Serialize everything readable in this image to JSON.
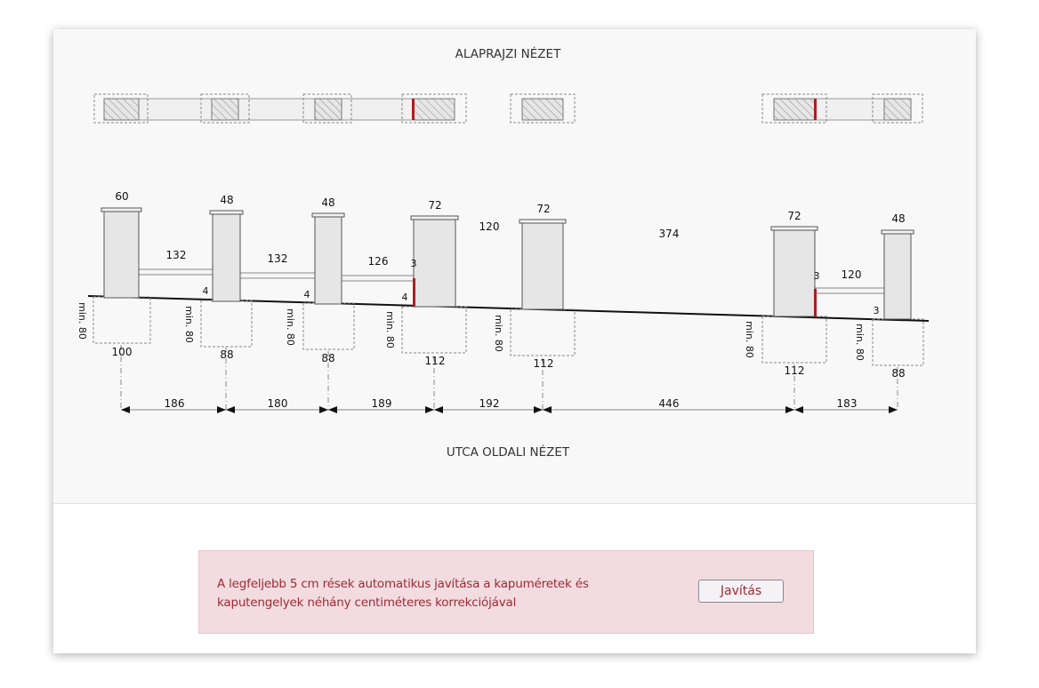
{
  "titles": {
    "top": "ALAPRAJZI NÉZET",
    "bottom": "UTCA OLDALI NÉZET"
  },
  "drawing": {
    "pillar_widths": [
      "60",
      "48",
      "48",
      "72",
      "72",
      "72",
      "48"
    ],
    "panel_lengths": [
      "132",
      "132",
      "126",
      "120",
      "374",
      "120"
    ],
    "gap_small": [
      "4",
      "4",
      "4",
      "3",
      "3",
      "3"
    ],
    "footing_depth": "min. 80",
    "footing_widths": [
      "100",
      "88",
      "88",
      "112",
      "112",
      "112",
      "88"
    ],
    "axis_spacing": [
      "186",
      "180",
      "189",
      "192",
      "446",
      "183"
    ]
  },
  "notice": {
    "text": "A legfeljebb 5 cm rések automatikus javítása a kapuméretek és kaputengelyek néhány centiméteres korrekciójával",
    "button_label": "Javítás"
  },
  "colors": {
    "accent_red": "#b41a1f",
    "notice_bg": "#f2dcdf",
    "notice_text": "#9d2a35"
  }
}
